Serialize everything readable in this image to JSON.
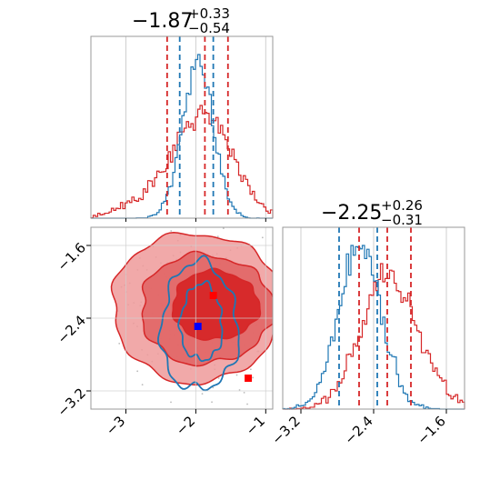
{
  "colors": {
    "red": "#d62728",
    "blue": "#1f77b4",
    "red_fill_light": "#ef9a9a",
    "red_fill_mid": "#e06666",
    "grid": "#cfcfcf",
    "frame": "#999999"
  },
  "titles": {
    "p1": {
      "median": "−1.87",
      "plus": "+0.33",
      "minus": "−0.54"
    },
    "p2": {
      "median": "−2.25",
      "plus": "+0.26",
      "minus": "−0.31"
    }
  },
  "chart_data": [
    {
      "type": "histogram",
      "panel": "top-left (marginal of parameter 1)",
      "xlim": [
        -3.5,
        -0.9
      ],
      "series": [
        {
          "color": "red",
          "quantile_lines": [
            -2.41,
            -1.87,
            -1.54
          ]
        },
        {
          "color": "blue",
          "quantile_lines": [
            -2.23,
            -1.75
          ]
        }
      ]
    },
    {
      "type": "histogram",
      "panel": "middle-right (marginal of parameter 2)",
      "xlim": [
        -3.4,
        -1.4
      ],
      "series": [
        {
          "color": "red",
          "quantile_lines": [
            -2.56,
            -2.25,
            -1.99
          ]
        },
        {
          "color": "blue",
          "quantile_lines": [
            -2.78,
            -2.36
          ]
        }
      ]
    },
    {
      "type": "contour",
      "panel": "bottom-left (joint)",
      "xlim": [
        -3.5,
        -0.9
      ],
      "ylim": [
        -3.4,
        -1.4
      ],
      "x_ticks": [
        "−3",
        "−2",
        "−1"
      ],
      "y_ticks": [
        "−1.6",
        "−2.4",
        "−3.2"
      ],
      "markers": [
        {
          "color": "red",
          "x": -1.75,
          "y": -2.15
        },
        {
          "color": "blue",
          "x": -1.97,
          "y": -2.49
        },
        {
          "color": "red",
          "x": -1.25,
          "y": -3.06
        }
      ]
    }
  ]
}
